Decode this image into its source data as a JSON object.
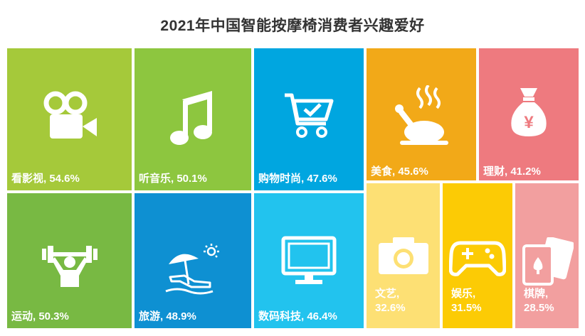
{
  "chart_data": {
    "type": "treemap",
    "title": "2021年中国智能按摩椅消费者兴趣爱好",
    "unit": "%",
    "items": [
      {
        "name": "看影视",
        "value": 54.6,
        "label": "看影视, 54.6%",
        "color": "#a5c93a",
        "icon": "movie-camera-icon"
      },
      {
        "name": "听音乐",
        "value": 50.1,
        "label": "听音乐, 50.1%",
        "color": "#8dc63f",
        "icon": "music-note-icon"
      },
      {
        "name": "购物时尚",
        "value": 47.6,
        "label": "购物时尚, 47.6%",
        "color": "#00a6e0",
        "icon": "shopping-cart-icon"
      },
      {
        "name": "美食",
        "value": 45.6,
        "label": "美食, 45.6%",
        "color": "#f2a918",
        "icon": "roast-chicken-icon"
      },
      {
        "name": "理财",
        "value": 41.2,
        "label": "理财, 41.2%",
        "color": "#ee7a7f",
        "icon": "money-bag-icon"
      },
      {
        "name": "运动",
        "value": 50.3,
        "label": "运动, 50.3%",
        "color": "#78b943",
        "icon": "weightlifting-icon"
      },
      {
        "name": "旅游",
        "value": 48.9,
        "label": "旅游, 48.9%",
        "color": "#0e90d2",
        "icon": "beach-umbrella-icon"
      },
      {
        "name": "数码科技",
        "value": 46.4,
        "label": "数码科技, 46.4%",
        "color": "#22c3ee",
        "icon": "monitor-icon"
      },
      {
        "name": "文艺",
        "value": 32.6,
        "label_lines": [
          "文艺,",
          "32.6%"
        ],
        "color": "#fde074",
        "icon": "camera-icon"
      },
      {
        "name": "娱乐",
        "value": 31.5,
        "label_lines": [
          "娱乐,",
          "31.5%"
        ],
        "color": "#fccb05",
        "icon": "gamepad-icon"
      },
      {
        "name": "棋牌",
        "value": 28.5,
        "label_lines": [
          "棋牌,",
          "28.5%"
        ],
        "color": "#f29f9f",
        "icon": "playing-cards-icon"
      }
    ]
  }
}
